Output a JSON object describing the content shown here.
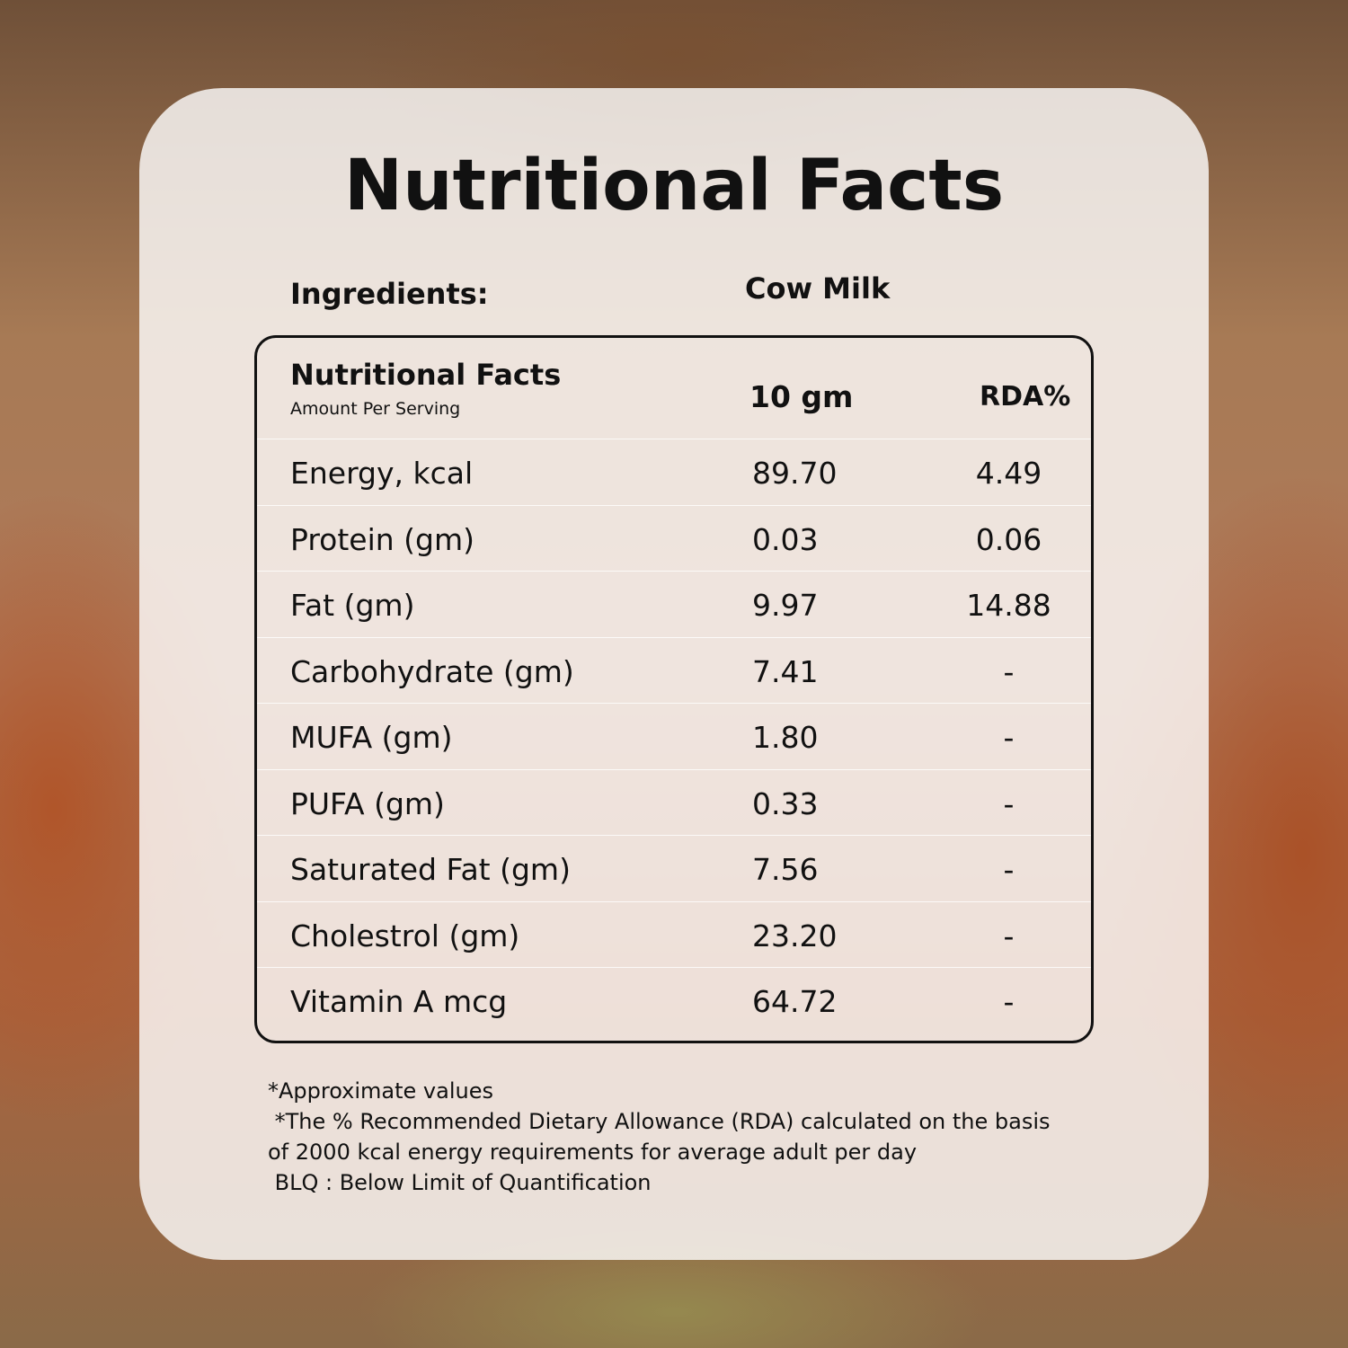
{
  "title": "Nutritional Facts",
  "ingredients": {
    "label": "Ingredients:",
    "value": "Cow Milk"
  },
  "table": {
    "header": {
      "title": "Nutritional Facts",
      "subtitle": "Amount Per Serving",
      "amount": "10 gm",
      "rda": "RDA%"
    },
    "rows": [
      [
        "Energy, kcal",
        "89.70",
        "4.49"
      ],
      [
        "Protein (gm)",
        "0.03",
        "0.06"
      ],
      [
        "Fat (gm)",
        "9.97",
        "14.88"
      ],
      [
        "Carbohydrate (gm)",
        "7.41",
        "-"
      ],
      [
        "MUFA (gm)",
        "1.80",
        "-"
      ],
      [
        "PUFA (gm)",
        "0.33",
        "-"
      ],
      [
        "Saturated Fat (gm)",
        "7.56",
        "-"
      ],
      [
        "Cholestrol (gm)",
        "23.20",
        "-"
      ],
      [
        "Vitamin A mcg",
        "64.72",
        "-"
      ]
    ]
  },
  "footnotes": [
    "*Approximate values",
    " *The % Recommended Dietary Allowance (RDA) calculated on the basis",
    "of 2000 kcal energy requirements for average adult per day",
    " BLQ : Below Limit of Quantification"
  ]
}
